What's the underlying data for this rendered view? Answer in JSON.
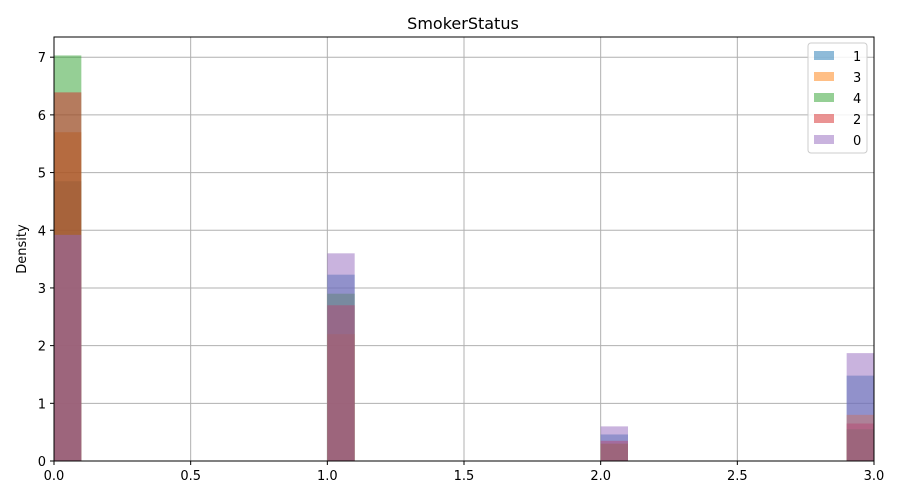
{
  "chart_data": {
    "type": "bar",
    "title": "SmokerStatus",
    "xlabel": "",
    "ylabel": "Density",
    "xlim": [
      0,
      3
    ],
    "ylim": [
      0,
      7.35
    ],
    "xticks": [
      "0.0",
      "0.5",
      "1.0",
      "1.5",
      "2.0",
      "2.5",
      "3.0"
    ],
    "yticks": [
      "0",
      "1",
      "2",
      "3",
      "4",
      "5",
      "6",
      "7"
    ],
    "grid": true,
    "legend_position": "top-right",
    "bin_width": 0.1,
    "bins": [
      0.0,
      1.0,
      2.0,
      2.9
    ],
    "series": [
      {
        "name": "1",
        "color": "#1f77b4",
        "values": [
          4.85,
          3.23,
          0.46,
          1.48
        ]
      },
      {
        "name": "3",
        "color": "#ff7f0e",
        "values": [
          5.7,
          2.2,
          0.3,
          0.8
        ]
      },
      {
        "name": "4",
        "color": "#2ca02c",
        "values": [
          7.03,
          2.9,
          0.3,
          0.55
        ]
      },
      {
        "name": "2",
        "color": "#d62728",
        "values": [
          6.39,
          2.7,
          0.35,
          0.65
        ]
      },
      {
        "name": "0",
        "color": "#9467bd",
        "values": [
          3.92,
          3.6,
          0.6,
          1.87
        ]
      }
    ]
  }
}
